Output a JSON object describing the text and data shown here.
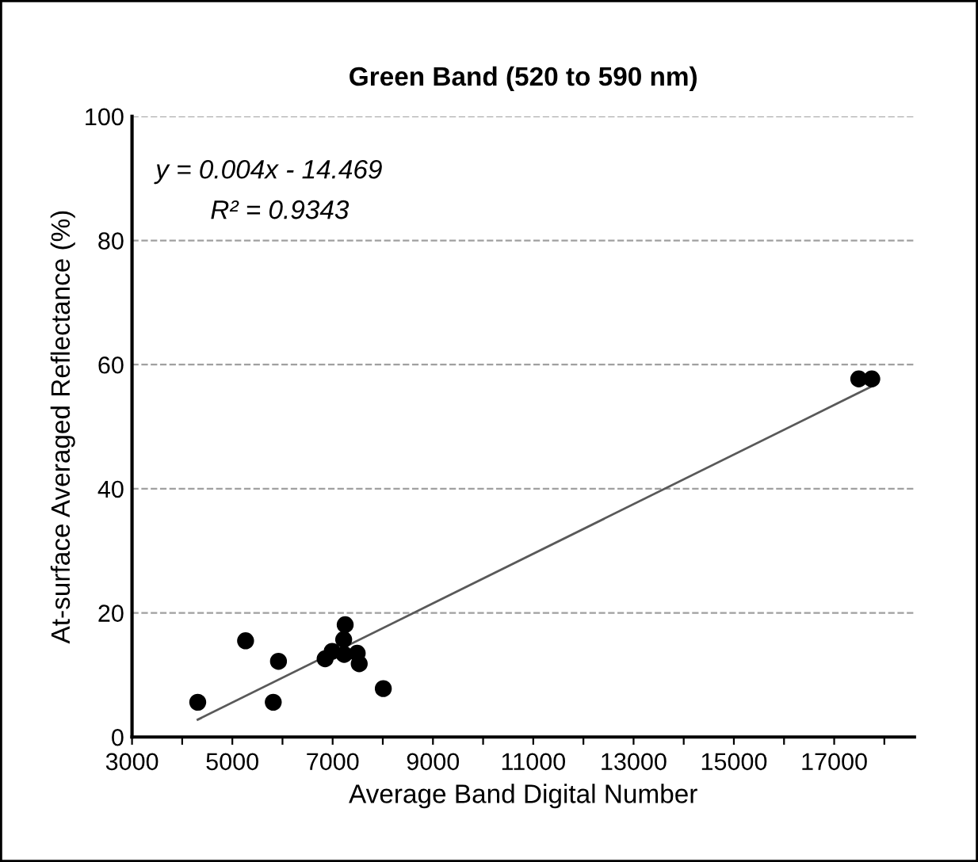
{
  "chart_data": {
    "type": "scatter",
    "title": "Green Band (520 to 590 nm)",
    "xlabel": "Average Band Digital Number",
    "ylabel": "At-surface Averaged Reflectance (%)",
    "series": [
      {
        "color": "#000000",
        "marker": "circle",
        "x": [
          4310,
          5264,
          5816,
          5920,
          6850,
          6990,
          7230,
          7220,
          7250,
          7490,
          7530,
          8010,
          17490,
          17750
        ],
        "values": [
          5.6,
          15.5,
          5.6,
          12.2,
          12.6,
          13.8,
          13.3,
          15.7,
          18.1,
          13.5,
          11.8,
          7.8,
          57.7,
          57.7
        ]
      },
      {
        "type": "line",
        "color": "#595959",
        "marker": "none",
        "x": [
          4310,
          17750
        ],
        "values": [
          2.8,
          56.5
        ]
      }
    ],
    "annotations": [
      "y = 0.004x - 14.469",
      "R² = 0.9343"
    ],
    "xlim": [
      3000,
      18600
    ],
    "ylim": [
      0,
      100
    ],
    "xticks": [
      3000,
      {
        "value": 4000,
        "label": null
      },
      5000,
      {
        "value": 6000,
        "label": null
      },
      7000,
      {
        "value": 8000,
        "label": null
      },
      9000,
      {
        "value": 10000,
        "label": null
      },
      11000,
      {
        "value": 12000,
        "label": null
      },
      13000,
      {
        "value": 14000,
        "label": null
      },
      15000,
      {
        "value": 16000,
        "label": null
      },
      17000,
      {
        "value": 18000,
        "label": null
      }
    ],
    "yticks": [
      0,
      20,
      40,
      60,
      80,
      100
    ],
    "grid": "y",
    "legend": false
  }
}
